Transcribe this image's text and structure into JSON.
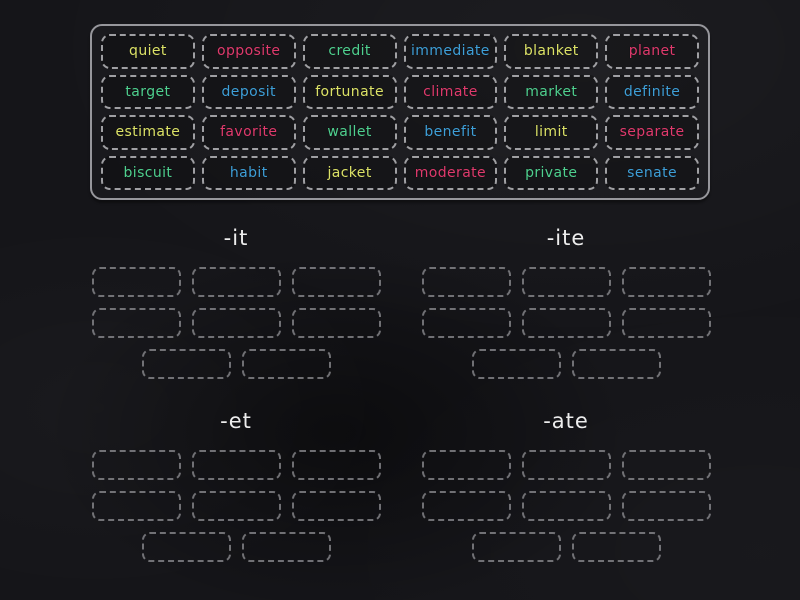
{
  "colors": {
    "chalk_yellow": "#dce267",
    "chalk_pink": "#e03a6d",
    "chalk_green": "#4fd08f",
    "chalk_blue": "#3e9fd8",
    "chalk_white": "#ededed"
  },
  "tray": {
    "words": [
      {
        "text": "quiet",
        "color": "#dce267"
      },
      {
        "text": "opposite",
        "color": "#e03a6d"
      },
      {
        "text": "credit",
        "color": "#4fd08f"
      },
      {
        "text": "immediate",
        "color": "#3e9fd8"
      },
      {
        "text": "blanket",
        "color": "#dce267"
      },
      {
        "text": "planet",
        "color": "#e03a6d"
      },
      {
        "text": "target",
        "color": "#4fd08f"
      },
      {
        "text": "deposit",
        "color": "#3e9fd8"
      },
      {
        "text": "fortunate",
        "color": "#dce267"
      },
      {
        "text": "climate",
        "color": "#e03a6d"
      },
      {
        "text": "market",
        "color": "#4fd08f"
      },
      {
        "text": "definite",
        "color": "#3e9fd8"
      },
      {
        "text": "estimate",
        "color": "#dce267"
      },
      {
        "text": "favorite",
        "color": "#e03a6d"
      },
      {
        "text": "wallet",
        "color": "#4fd08f"
      },
      {
        "text": "benefit",
        "color": "#3e9fd8"
      },
      {
        "text": "limit",
        "color": "#dce267"
      },
      {
        "text": "separate",
        "color": "#e03a6d"
      },
      {
        "text": "biscuit",
        "color": "#4fd08f"
      },
      {
        "text": "habit",
        "color": "#3e9fd8"
      },
      {
        "text": "jacket",
        "color": "#dce267"
      },
      {
        "text": "moderate",
        "color": "#e03a6d"
      },
      {
        "text": "private",
        "color": "#4fd08f"
      },
      {
        "text": "senate",
        "color": "#3e9fd8"
      }
    ]
  },
  "groups": [
    {
      "label": "-it",
      "slot_count": 8
    },
    {
      "label": "-ite",
      "slot_count": 8
    },
    {
      "label": "-et",
      "slot_count": 8
    },
    {
      "label": "-ate",
      "slot_count": 8
    }
  ]
}
